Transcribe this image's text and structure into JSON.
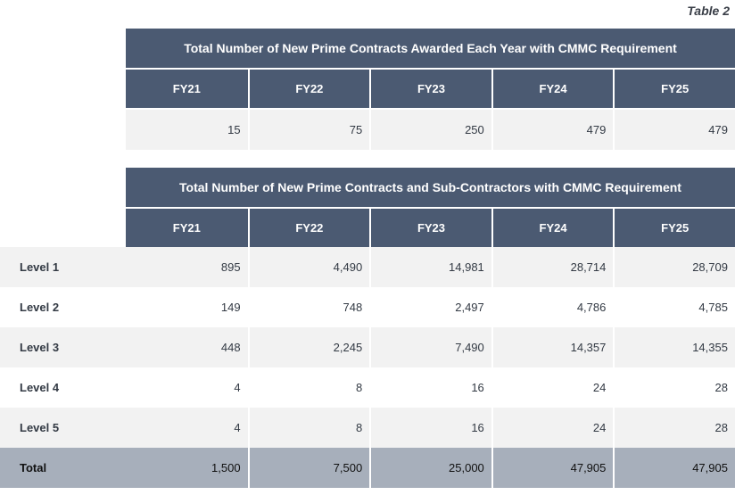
{
  "caption": "Table 2",
  "table1": {
    "title": "Total Number of New Prime Contracts Awarded Each Year with CMMC Requirement",
    "years": [
      "FY21",
      "FY22",
      "FY23",
      "FY24",
      "FY25"
    ],
    "values": [
      "15",
      "75",
      "250",
      "479",
      "479"
    ]
  },
  "table2": {
    "title": "Total Number of New Prime Contracts and Sub-Contractors with CMMC Requirement",
    "years": [
      "FY21",
      "FY22",
      "FY23",
      "FY24",
      "FY25"
    ],
    "rows": [
      {
        "label": "Level 1",
        "values": [
          "895",
          "4,490",
          "14,981",
          "28,714",
          "28,709"
        ]
      },
      {
        "label": "Level 2",
        "values": [
          "149",
          "748",
          "2,497",
          "4,786",
          "4,785"
        ]
      },
      {
        "label": "Level 3",
        "values": [
          "448",
          "2,245",
          "7,490",
          "14,357",
          "14,355"
        ]
      },
      {
        "label": "Level 4",
        "values": [
          "4",
          "8",
          "16",
          "24",
          "28"
        ]
      },
      {
        "label": "Level 5",
        "values": [
          "4",
          "8",
          "16",
          "24",
          "28"
        ]
      },
      {
        "label": "Total",
        "values": [
          "1,500",
          "7,500",
          "25,000",
          "47,905",
          "47,905"
        ]
      }
    ]
  }
}
